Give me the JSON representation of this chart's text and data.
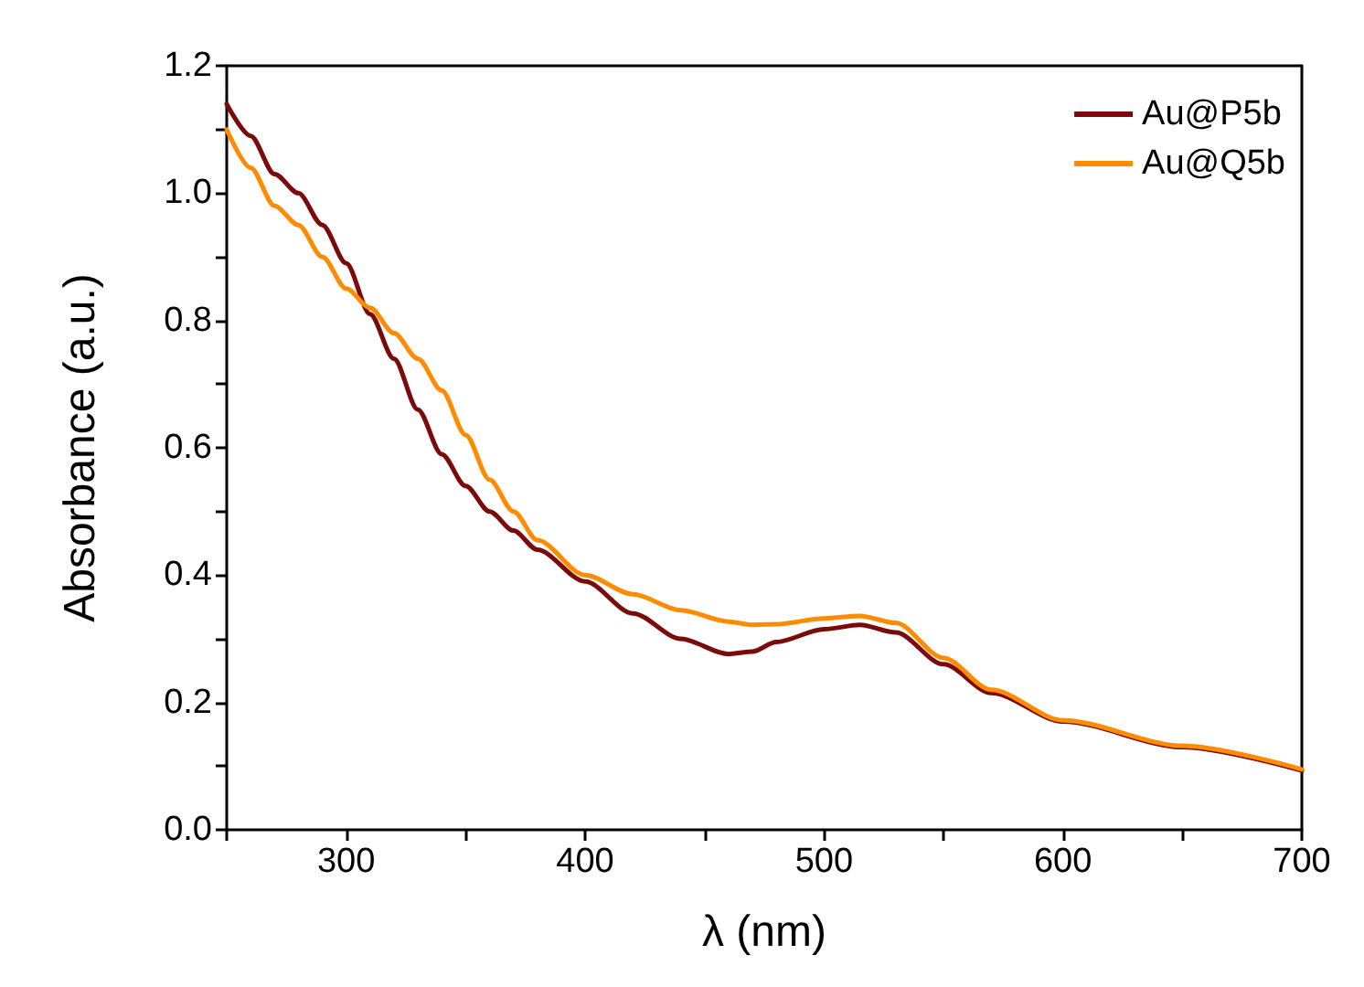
{
  "chart_data": {
    "type": "line",
    "xlabel": "λ (nm)",
    "ylabel": "Absorbance (a.u.)",
    "xlim": [
      250,
      700
    ],
    "ylim": [
      0,
      1.2
    ],
    "xticks": [
      {
        "value": 250,
        "label": null
      },
      300,
      {
        "value": 350,
        "label": null
      },
      400,
      {
        "value": 450,
        "label": null
      },
      500,
      {
        "value": 550,
        "label": null
      },
      600,
      {
        "value": 650,
        "label": null
      },
      700
    ],
    "yticks": [
      {
        "value": 0,
        "label": "0.0"
      },
      {
        "value": 0.1,
        "label": null
      },
      0.2,
      {
        "value": 0.3,
        "label": null
      },
      0.4,
      {
        "value": 0.5,
        "label": null
      },
      0.6,
      {
        "value": 0.7,
        "label": null
      },
      0.8,
      {
        "value": 0.9,
        "label": null
      },
      {
        "value": 1,
        "label": "1.0"
      },
      {
        "value": 1.1,
        "label": null
      },
      1.2
    ],
    "grid": false,
    "legend": "top right",
    "marker": "none",
    "line_style": "solid",
    "x": [
      250,
      260,
      270,
      280,
      290,
      300,
      310,
      320,
      330,
      340,
      350,
      360,
      370,
      380,
      400,
      420,
      440,
      460,
      470,
      480,
      500,
      515,
      530,
      550,
      570,
      600,
      650,
      700
    ],
    "series": [
      {
        "name": "Au@P5b",
        "color": "#7b0a0a",
        "values": [
          1.14,
          1.09,
          1.03,
          1.0,
          0.95,
          0.89,
          0.81,
          0.74,
          0.66,
          0.59,
          0.54,
          0.5,
          0.47,
          0.44,
          0.39,
          0.34,
          0.3,
          0.276,
          0.28,
          0.295,
          0.315,
          0.322,
          0.31,
          0.26,
          0.215,
          0.17,
          0.13,
          0.093
        ]
      },
      {
        "name": "Au@Q5b",
        "color": "#ff8c00",
        "values": [
          1.1,
          1.04,
          0.98,
          0.95,
          0.9,
          0.85,
          0.82,
          0.78,
          0.74,
          0.69,
          0.62,
          0.55,
          0.5,
          0.455,
          0.4,
          0.37,
          0.345,
          0.327,
          0.322,
          0.323,
          0.332,
          0.336,
          0.325,
          0.27,
          0.22,
          0.172,
          0.132,
          0.095
        ]
      }
    ]
  }
}
